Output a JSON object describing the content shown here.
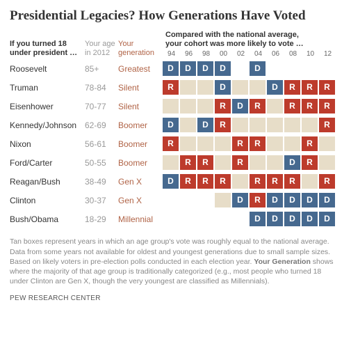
{
  "title": "Presidential Legacies? How Generations Have Voted",
  "columns": {
    "president_header_l1": "If you turned 18",
    "president_header_l2": "under president …",
    "age_header_l1": "Your age",
    "age_header_l2": "in 2012",
    "gen_header_l1": "Your",
    "gen_header_l2": "generation",
    "compare_header_l1": "Compared with the national average,",
    "compare_header_l2": "your cohort was more likely to vote …"
  },
  "years": [
    "94",
    "96",
    "98",
    "00",
    "02",
    "04",
    "06",
    "08",
    "10",
    "12"
  ],
  "colors": {
    "D": "#46698f",
    "R": "#bd3b2c",
    "N": "#e7ddc8",
    "text_muted": "#999999",
    "text_gen": "#b06346",
    "background": "#ffffff"
  },
  "rows": [
    {
      "president": "Roosevelt",
      "age": "85+",
      "generation": "Greatest",
      "votes": [
        "D",
        "D",
        "D",
        "D",
        "",
        "D",
        "",
        "",
        "",
        ""
      ]
    },
    {
      "president": "Truman",
      "age": "78-84",
      "generation": "Silent",
      "votes": [
        "R",
        "N",
        "N",
        "D",
        "N",
        "N",
        "D",
        "R",
        "R",
        "R"
      ]
    },
    {
      "president": "Eisenhower",
      "age": "70-77",
      "generation": "Silent",
      "votes": [
        "N",
        "N",
        "N",
        "R",
        "D",
        "R",
        "N",
        "R",
        "R",
        "R"
      ]
    },
    {
      "president": "Kennedy/Johnson",
      "age": "62-69",
      "generation": "Boomer",
      "votes": [
        "D",
        "N",
        "D",
        "R",
        "N",
        "N",
        "N",
        "N",
        "N",
        "R"
      ]
    },
    {
      "president": "Nixon",
      "age": "56-61",
      "generation": "Boomer",
      "votes": [
        "R",
        "N",
        "N",
        "N",
        "R",
        "R",
        "N",
        "N",
        "R",
        "N"
      ]
    },
    {
      "president": "Ford/Carter",
      "age": "50-55",
      "generation": "Boomer",
      "votes": [
        "N",
        "R",
        "R",
        "N",
        "R",
        "N",
        "N",
        "D",
        "R",
        "N"
      ]
    },
    {
      "president": "Reagan/Bush",
      "age": "38-49",
      "generation": "Gen X",
      "votes": [
        "D",
        "R",
        "R",
        "R",
        "N",
        "R",
        "R",
        "R",
        "N",
        "R"
      ]
    },
    {
      "president": "Clinton",
      "age": "30-37",
      "generation": "Gen X",
      "votes": [
        "",
        "",
        "",
        "N",
        "D",
        "R",
        "D",
        "D",
        "D",
        "D"
      ]
    },
    {
      "president": "Bush/Obama",
      "age": "18-29",
      "generation": "Millennial",
      "votes": [
        "",
        "",
        "",
        "",
        "",
        "D",
        "D",
        "D",
        "D",
        "D"
      ]
    }
  ],
  "footnote": "Tan boxes represent years in which an age group's vote was roughly equal to the national average. Data from some years not available for oldest and youngest generations due to small sample sizes. Based on likely voters in pre-election polls conducted in each election year. <b>Your Generation</b> shows where the majority of that age group is traditionally categorized (e.g., most people who turned 18 under Clinton are Gen X, though the very youngest are classified as Millennials).",
  "source": "PEW RESEARCH CENTER"
}
